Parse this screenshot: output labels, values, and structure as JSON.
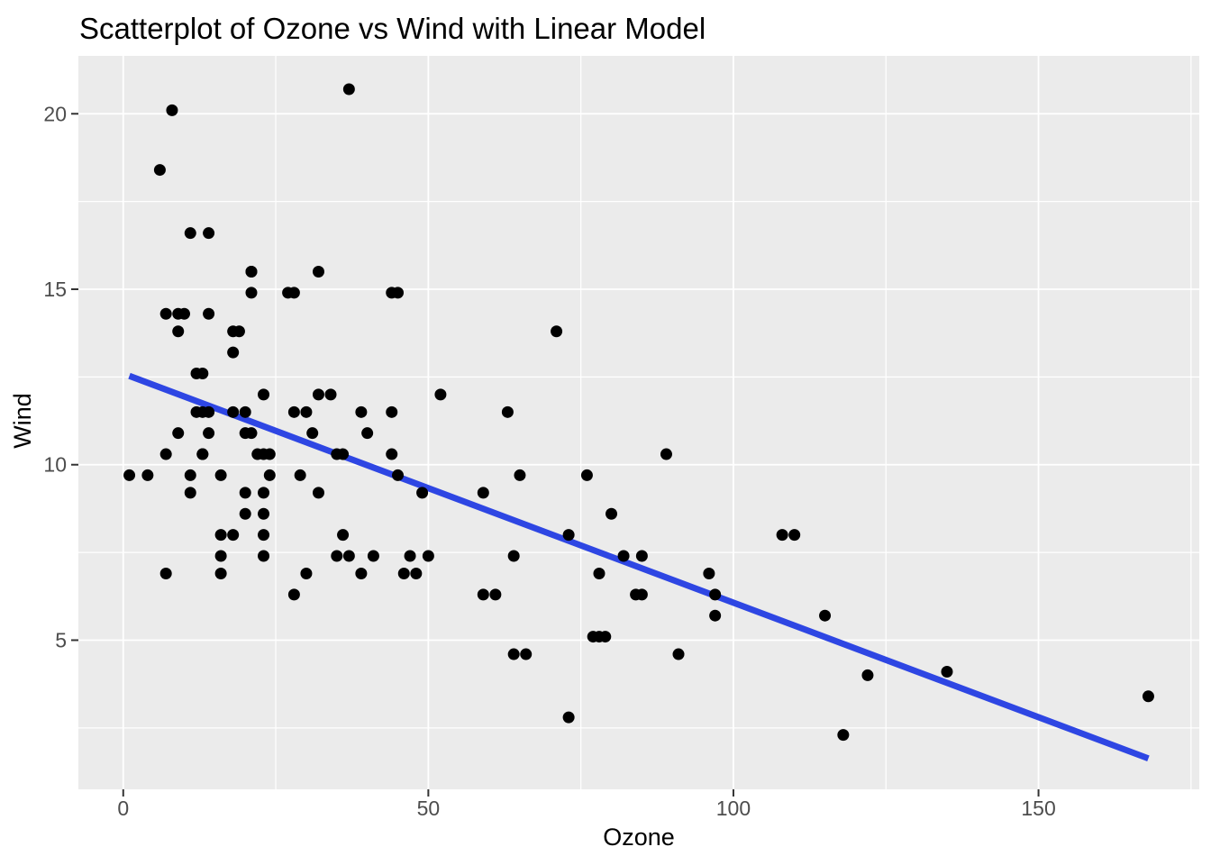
{
  "chart_data": {
    "type": "scatter",
    "title": "Scatterplot of Ozone vs Wind with Linear Model",
    "xlabel": "Ozone",
    "ylabel": "Wind",
    "xlim": [
      -7.35,
      176.35
    ],
    "ylim": [
      0.75,
      21.65
    ],
    "x_major_ticks": [
      0,
      50,
      100,
      150
    ],
    "x_minor_ticks": [
      25,
      75,
      125,
      175
    ],
    "y_major_ticks": [
      5,
      10,
      15,
      20
    ],
    "y_minor_ticks": [
      2.5,
      7.5,
      12.5,
      17.5
    ],
    "grid": "on",
    "legend": "none",
    "series": [
      {
        "name": "observations",
        "type": "scatter",
        "points": [
          [
            41,
            7.4
          ],
          [
            36,
            8.0
          ],
          [
            12,
            12.6
          ],
          [
            18,
            11.5
          ],
          [
            28,
            14.9
          ],
          [
            23,
            8.6
          ],
          [
            19,
            13.8
          ],
          [
            8,
            20.1
          ],
          [
            7,
            6.9
          ],
          [
            16,
            9.7
          ],
          [
            11,
            9.2
          ],
          [
            14,
            10.9
          ],
          [
            18,
            13.2
          ],
          [
            14,
            11.5
          ],
          [
            34,
            12.0
          ],
          [
            6,
            18.4
          ],
          [
            30,
            11.5
          ],
          [
            11,
            9.7
          ],
          [
            1,
            9.7
          ],
          [
            11,
            16.6
          ],
          [
            4,
            9.7
          ],
          [
            32,
            12.0
          ],
          [
            23,
            12.0
          ],
          [
            45,
            14.9
          ],
          [
            115,
            5.7
          ],
          [
            37,
            7.4
          ],
          [
            29,
            9.7
          ],
          [
            71,
            13.8
          ],
          [
            39,
            11.5
          ],
          [
            23,
            8.0
          ],
          [
            21,
            14.9
          ],
          [
            37,
            20.7
          ],
          [
            20,
            9.2
          ],
          [
            12,
            11.5
          ],
          [
            13,
            10.3
          ],
          [
            135,
            4.1
          ],
          [
            49,
            9.2
          ],
          [
            32,
            9.2
          ],
          [
            64,
            4.6
          ],
          [
            40,
            10.9
          ],
          [
            77,
            5.1
          ],
          [
            97,
            6.3
          ],
          [
            97,
            5.7
          ],
          [
            85,
            7.4
          ],
          [
            10,
            14.3
          ],
          [
            27,
            14.9
          ],
          [
            7,
            14.3
          ],
          [
            48,
            6.9
          ],
          [
            35,
            10.3
          ],
          [
            61,
            6.3
          ],
          [
            79,
            5.1
          ],
          [
            63,
            11.5
          ],
          [
            16,
            6.9
          ],
          [
            80,
            8.6
          ],
          [
            108,
            8.0
          ],
          [
            20,
            8.6
          ],
          [
            52,
            12.0
          ],
          [
            82,
            7.4
          ],
          [
            50,
            7.4
          ],
          [
            64,
            7.4
          ],
          [
            59,
            9.2
          ],
          [
            39,
            6.9
          ],
          [
            9,
            13.8
          ],
          [
            16,
            7.4
          ],
          [
            78,
            6.9
          ],
          [
            35,
            7.4
          ],
          [
            66,
            4.6
          ],
          [
            122,
            4.0
          ],
          [
            89,
            10.3
          ],
          [
            110,
            8.0
          ],
          [
            44,
            11.5
          ],
          [
            28,
            11.5
          ],
          [
            65,
            9.7
          ],
          [
            22,
            10.3
          ],
          [
            59,
            6.3
          ],
          [
            23,
            7.4
          ],
          [
            31,
            10.9
          ],
          [
            44,
            10.3
          ],
          [
            21,
            15.5
          ],
          [
            9,
            14.3
          ],
          [
            45,
            9.7
          ],
          [
            168,
            3.4
          ],
          [
            73,
            8.0
          ],
          [
            76,
            9.7
          ],
          [
            118,
            2.3
          ],
          [
            84,
            6.3
          ],
          [
            85,
            6.3
          ],
          [
            96,
            6.9
          ],
          [
            78,
            5.1
          ],
          [
            73,
            2.8
          ],
          [
            91,
            4.6
          ],
          [
            47,
            7.4
          ],
          [
            32,
            15.5
          ],
          [
            20,
            10.9
          ],
          [
            23,
            10.3
          ],
          [
            21,
            10.9
          ],
          [
            24,
            9.7
          ],
          [
            44,
            14.9
          ],
          [
            21,
            15.5
          ],
          [
            28,
            6.3
          ],
          [
            9,
            10.9
          ],
          [
            13,
            11.5
          ],
          [
            46,
            6.9
          ],
          [
            18,
            13.8
          ],
          [
            13,
            10.3
          ],
          [
            24,
            10.3
          ],
          [
            16,
            8.0
          ],
          [
            13,
            12.6
          ],
          [
            23,
            9.2
          ],
          [
            36,
            10.3
          ],
          [
            7,
            10.3
          ],
          [
            14,
            16.6
          ],
          [
            30,
            6.9
          ],
          [
            14,
            14.3
          ],
          [
            18,
            8.0
          ],
          [
            20,
            11.5
          ]
        ]
      },
      {
        "name": "linear-model",
        "type": "line",
        "x": [
          1,
          168
        ],
        "y": [
          12.53,
          1.63
        ]
      }
    ],
    "colors": {
      "panel_background": "#EBEBEB",
      "gridline": "#FFFFFF",
      "point": "#000000",
      "trend_line": "#2E46E3",
      "tick_mark": "#333333",
      "tick_label": "#4D4D4D",
      "title": "#000000"
    }
  }
}
